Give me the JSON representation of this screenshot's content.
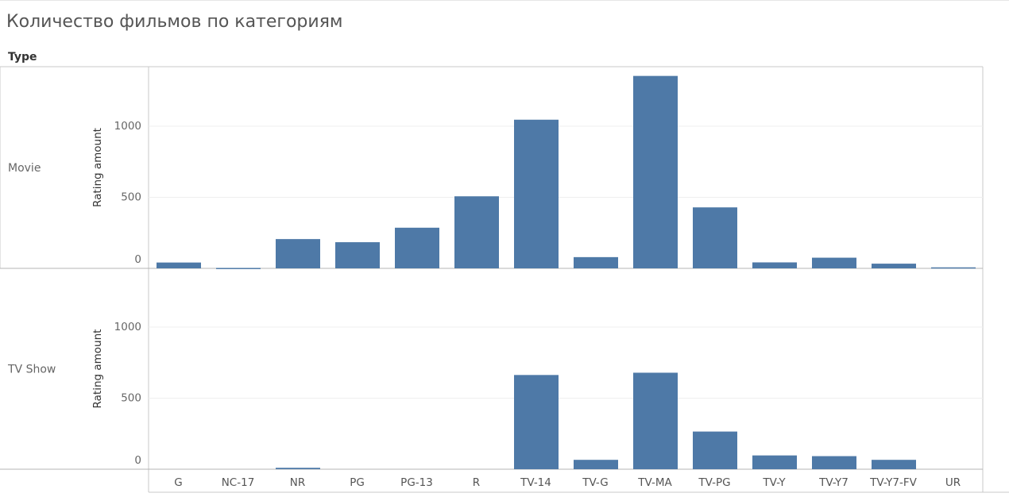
{
  "title": "Количество фильмов по категориям",
  "header": {
    "type_label": "Type"
  },
  "colors": {
    "bar": "#4e79a7",
    "grid": "#efefef",
    "frame": "#c8c8c8"
  },
  "chart_data": {
    "type": "bar",
    "title": "Количество фильмов по категориям",
    "xlabel": "",
    "ylabel": "Rating amount",
    "categories": [
      "G",
      "NC-17",
      "NR",
      "PG",
      "PG-13",
      "R",
      "TV-14",
      "TV-G",
      "TV-MA",
      "TV-PG",
      "TV-Y",
      "TV-Y7",
      "TV-Y7-FV",
      "UR"
    ],
    "yticks": [
      0,
      500,
      1000
    ],
    "ylim": [
      0,
      1350
    ],
    "grid": true,
    "panels": [
      {
        "name": "Movie",
        "values": [
          41,
          3,
          206,
          184,
          286,
          507,
          1046,
          79,
          1354,
          429,
          42,
          75,
          33,
          7
        ]
      },
      {
        "name": "TV Show",
        "values": [
          0,
          0,
          10,
          0,
          0,
          0,
          663,
          66,
          679,
          265,
          97,
          92,
          66,
          0
        ]
      }
    ]
  }
}
